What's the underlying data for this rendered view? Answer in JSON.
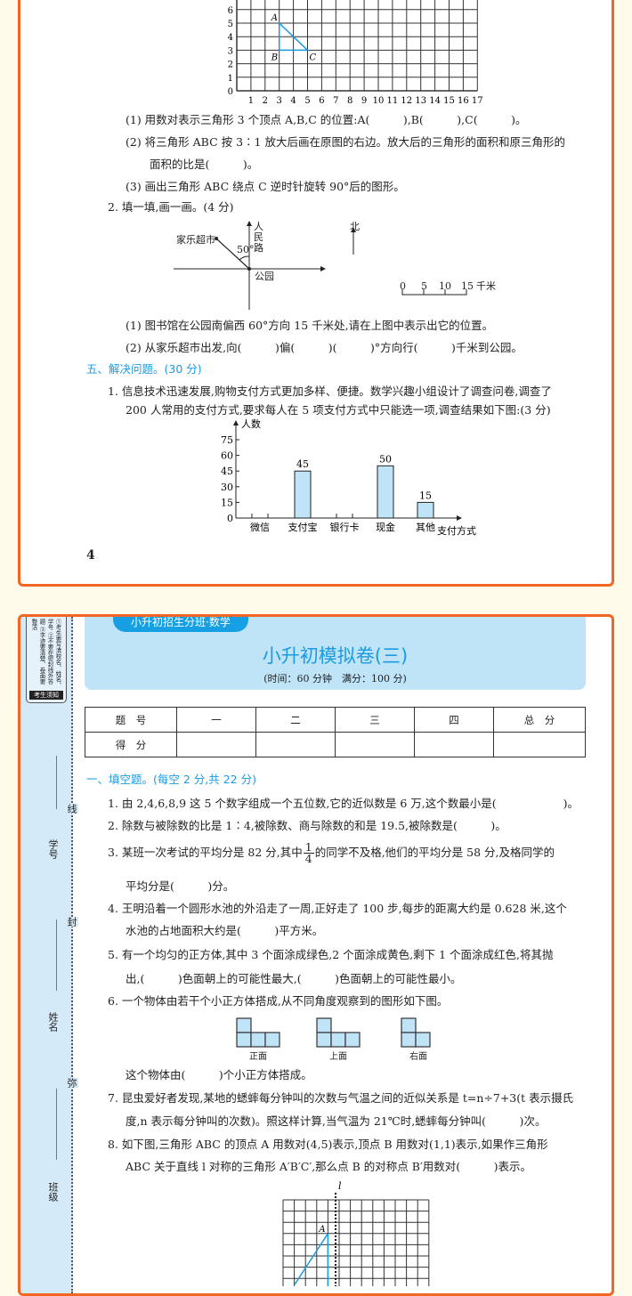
{
  "page1": {
    "grid": {
      "y_ticks": [
        "0",
        "1",
        "2",
        "3",
        "4",
        "5",
        "6"
      ],
      "x_ticks": [
        "1",
        "2",
        "3",
        "4",
        "5",
        "6",
        "7",
        "8",
        "9",
        "10",
        "11",
        "12",
        "13",
        "14",
        "15",
        "16",
        "17"
      ],
      "point_labels": {
        "A": "A",
        "B": "B",
        "C": "C"
      },
      "triangle_color": "#1a9be0"
    },
    "q1_sub": [
      "(1) 用数对表示三角形 3 个顶点 A,B,C 的位置:A(　　　),B(　　　),C(　　　)。",
      "(2) 将三角形 ABC 按 3∶1 放大后画在原图的右边。放大后的三角形的面积和原三角形的",
      "面积的比是(　　　)。",
      "(3) 画出三角形 ABC 绕点 C 逆时针旋转 90°后的图形。"
    ],
    "q2_title": "2. 填一填,画一画。(4 分)",
    "map": {
      "supermarket": "家乐超市",
      "angle": "50°",
      "road": "人民路",
      "park": "公园",
      "north": "北",
      "scale_ticks": [
        "0",
        "5",
        "10",
        "15"
      ],
      "scale_unit": "千米"
    },
    "q2_sub": [
      "(1) 图书馆在公园南偏西 60°方向 15 千米处,请在上图中表示出它的位置。",
      "(2) 从家乐超市出发,向(　　　)偏(　　　)(　　　)°方向行(　　　)千米到公园。"
    ],
    "section5_title": "五、解决问题。(30 分)",
    "q5_1": [
      "1. 信息技术迅速发展,购物支付方式更加多样、便捷。数学兴趣小组设计了调查问卷,调查了",
      "200 人常用的支付方式,要求每人在 5 项支付方式中只能选一项,调查结果如下图:(3 分)"
    ],
    "page_number": "4"
  },
  "chart_data": {
    "type": "bar",
    "categories": [
      "微信",
      "支付宝",
      "银行卡",
      "现金",
      "其他"
    ],
    "values": [
      null,
      45,
      null,
      50,
      15
    ],
    "data_labels": [
      "",
      "45",
      "",
      "50",
      "15"
    ],
    "xlabel": "支付方式",
    "ylabel": "人数",
    "y_ticks": [
      "0",
      "15",
      "30",
      "45",
      "60",
      "75"
    ],
    "ylim": [
      0,
      80
    ],
    "bar_color": "#bfe3f7"
  },
  "page2": {
    "series_tag": "小升初招生分班·数学",
    "title": "小升初模拟卷(三)",
    "subtitle": "(时间：60 分钟　满分：100 分)",
    "sidebar": {
      "notice_text": "①考生要写清校名、姓名、学号 ②不要在密封线外答题 ③字迹要清楚、卷面要整洁",
      "notice_tag": "考生须知",
      "fields": [
        "学号",
        "姓名",
        "班级"
      ],
      "seal_chars": [
        "线",
        "封",
        "弥"
      ]
    },
    "score_table": {
      "headers": [
        "题　号",
        "一",
        "二",
        "三",
        "四",
        "总　分"
      ],
      "row_label": "得　分"
    },
    "section1_title": "一、填空题。(每空 2 分,共 22 分)",
    "q1": "1. 由 2,4,6,8,9 这 5 个数字组成一个五位数,它的近似数是 6 万,这个数最小是(　　　　　　)。",
    "q2": "2. 除数与被除数的比是 1∶4,被除数、商与除数的和是 19.5,被除数是(　　　)。",
    "q3": {
      "before": "3. 某班一次考试的平均分是 82 分,其中",
      "num": "1",
      "den": "4",
      "after": "的同学不及格,他们的平均分是 58 分,及格同学的",
      "line2": "平均分是(　　　)分。"
    },
    "q4": [
      "4. 王明沿着一个圆形水池的外沿走了一周,正好走了 100 步,每步的距离大约是 0.628 米,这个",
      "水池的占地面积大约是(　　　)平方米。"
    ],
    "q5": [
      "5. 有一个均匀的正方体,其中 3 个面涂成绿色,2 个面涂成黄色,剩下 1 个面涂成红色,将其抛",
      "出,(　　　)色面朝上的可能性最大,(　　　)色面朝上的可能性最小。"
    ],
    "q6": "6. 一个物体由若干个小正方体搭成,从不同角度观察到的图形如下图。",
    "views": [
      "正面",
      "上面",
      "右面"
    ],
    "q6_answer": "这个物体由(　　　)个小正方体搭成。",
    "q7": [
      "7. 昆虫爱好者发现,某地的蟋蟀每分钟叫的次数与气温之间的近似关系是 t=n÷7+3(t 表示摄氏",
      "度,n 表示每分钟叫的次数)。照这样计算,当气温为 21℃时,蟋蟀每分钟叫(　　　)次。"
    ],
    "q8": [
      "8. 如下图,三角形 ABC 的顶点 A 用数对(4,5)表示,顶点 B 用数对(1,1)表示,如果作三角形",
      "ABC 关于直线 l 对称的三角形 A′B′C′,那么点 B 的对称点 B′用数对(　　　)表示。"
    ],
    "grid2": {
      "line_label": "l",
      "point_label": "A"
    }
  },
  "colors": {
    "border": "#f26522",
    "accent": "#1a9be0",
    "banner": "#bfe3f7",
    "background": "#fffbea"
  }
}
